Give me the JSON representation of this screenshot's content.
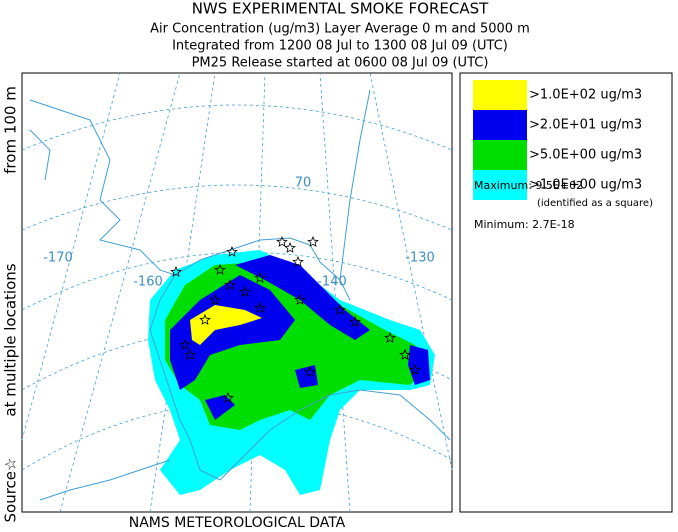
{
  "header": {
    "title": "NWS EXPERIMENTAL SMOKE FORECAST",
    "lines": [
      "Air Concentration (ug/m3) Layer Average    0 m and  5000 m",
      "Integrated from 1200 08 Jul to 1300 08 Jul 09 (UTC)",
      "PM25 Release started at 0600 08 Jul 09 (UTC)"
    ]
  },
  "legend": {
    "entries": [
      {
        "label": ">1.0E+02 ug/m3",
        "color": "#ffff00"
      },
      {
        "label": ">2.0E+01 ug/m3",
        "color": "#0000ee"
      },
      {
        "label": ">5.0E+00 ug/m3",
        "color": "#00dd00"
      },
      {
        "label": ">1.0E+00 ug/m3",
        "color": "#00ffff"
      }
    ],
    "maximum": "Maximum: 9.5E+02",
    "max_note": "(identified as a square)",
    "minimum": "Minimum: 2.7E-18"
  },
  "map": {
    "grid_labels": [
      "-170",
      "-160",
      "-140",
      "-130",
      "70"
    ]
  },
  "side_label": [
    "Source☆",
    "at multiple locations",
    "from  100 m"
  ],
  "footer": "NAMS METEOROLOGICAL DATA"
}
